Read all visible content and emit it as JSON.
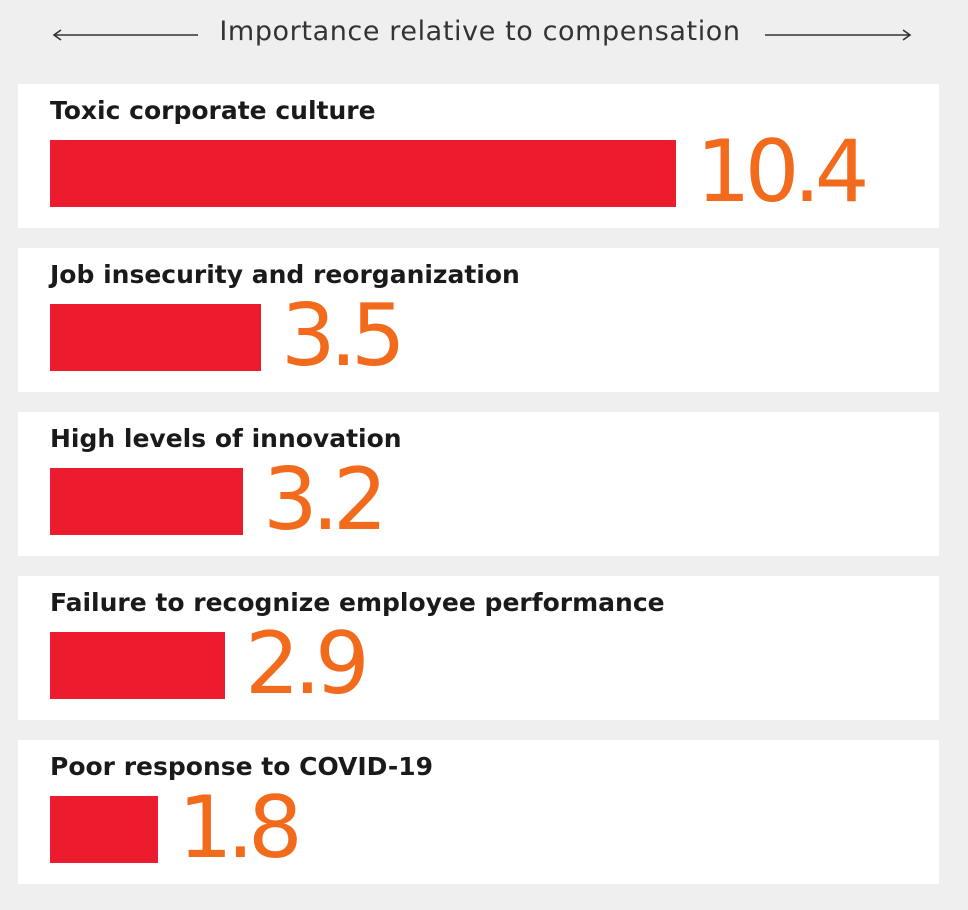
{
  "chart_data": {
    "type": "bar",
    "orientation": "horizontal",
    "title": "Importance relative to compensation",
    "categories": [
      "Toxic corporate culture",
      "Job insecurity and reorganization",
      "High levels of innovation",
      "Failure to recognize employee performance",
      "Poor response to COVID-19"
    ],
    "values": [
      10.4,
      3.5,
      3.2,
      2.9,
      1.8
    ],
    "value_labels": [
      "10.4",
      "3.5",
      "3.2",
      "2.9",
      "1.8"
    ],
    "xlim": [
      0,
      10.4
    ],
    "colors": {
      "bar": "#ec1c2e",
      "value_text": "#f26a1b",
      "panel": "#ffffff",
      "background": "#efefef"
    }
  }
}
